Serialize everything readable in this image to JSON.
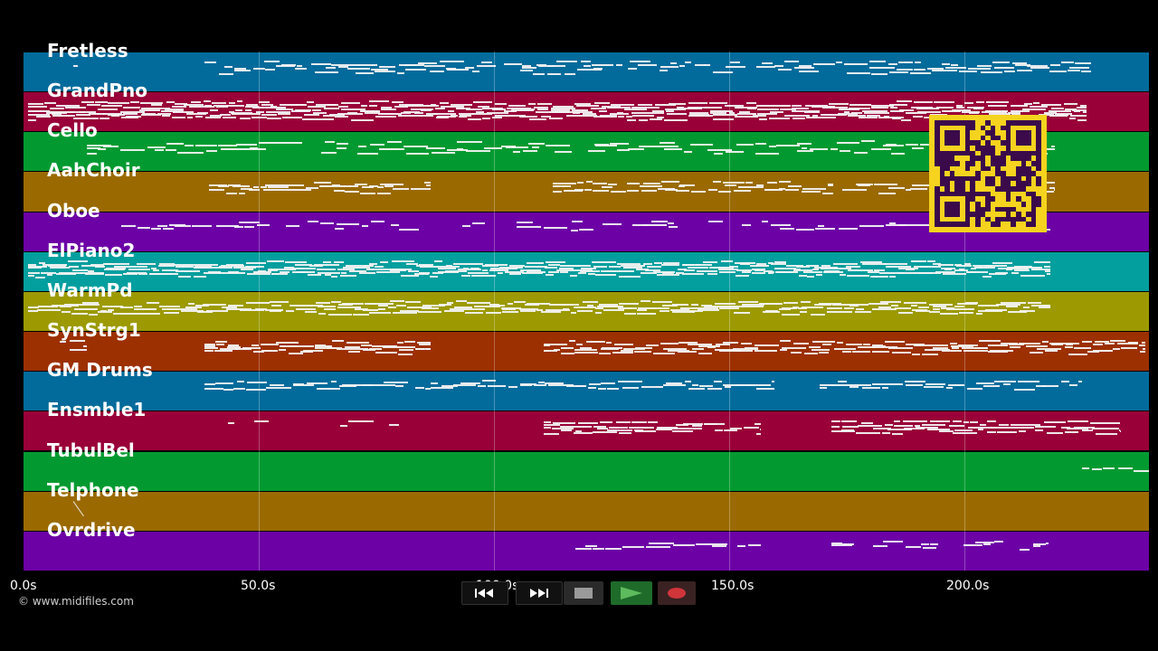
{
  "tracks": [
    {
      "name": "Fretless",
      "color": "#026b9b"
    },
    {
      "name": "GrandPno",
      "color": "#990038"
    },
    {
      "name": "Cello",
      "color": "#029a30"
    },
    {
      "name": "AahChoir",
      "color": "#9a6a00"
    },
    {
      "name": "Oboe",
      "color": "#6c01a6"
    },
    {
      "name": "ElPiano2",
      "color": "#039e9e"
    },
    {
      "name": "WarmPd",
      "color": "#9c9a00"
    },
    {
      "name": "SynStrg1",
      "color": "#9c3000"
    },
    {
      "name": "GM Drums",
      "color": "#026b9b"
    },
    {
      "name": "Ensmble1",
      "color": "#990038"
    },
    {
      "name": "TubulBel",
      "color": "#029a30"
    },
    {
      "name": "Telphone",
      "color": "#9a6a00"
    },
    {
      "name": "Ovrdrive",
      "color": "#6c01a6"
    }
  ],
  "timeline": {
    "max_seconds": 239.5,
    "ticks": [
      {
        "label": "0.0s",
        "value": 0
      },
      {
        "label": "50.0s",
        "value": 50
      },
      {
        "label": "100.0s",
        "value": 100
      },
      {
        "label": "150.0s",
        "value": 150
      },
      {
        "label": "200.0s",
        "value": 200
      }
    ]
  },
  "copyright": "© www.midifiles.com",
  "controls": [
    {
      "name": "rewind-button",
      "icon": "rewind-icon"
    },
    {
      "name": "fast-forward-button",
      "icon": "fast-forward-icon"
    },
    {
      "name": "stop-button",
      "icon": "stop-icon"
    },
    {
      "name": "play-button",
      "icon": "play-icon"
    },
    {
      "name": "record-button",
      "icon": "record-icon"
    }
  ],
  "qr_code": {
    "icon": "qr-code-icon",
    "color": "#f5d31e",
    "dark": "#3a0a4a"
  }
}
